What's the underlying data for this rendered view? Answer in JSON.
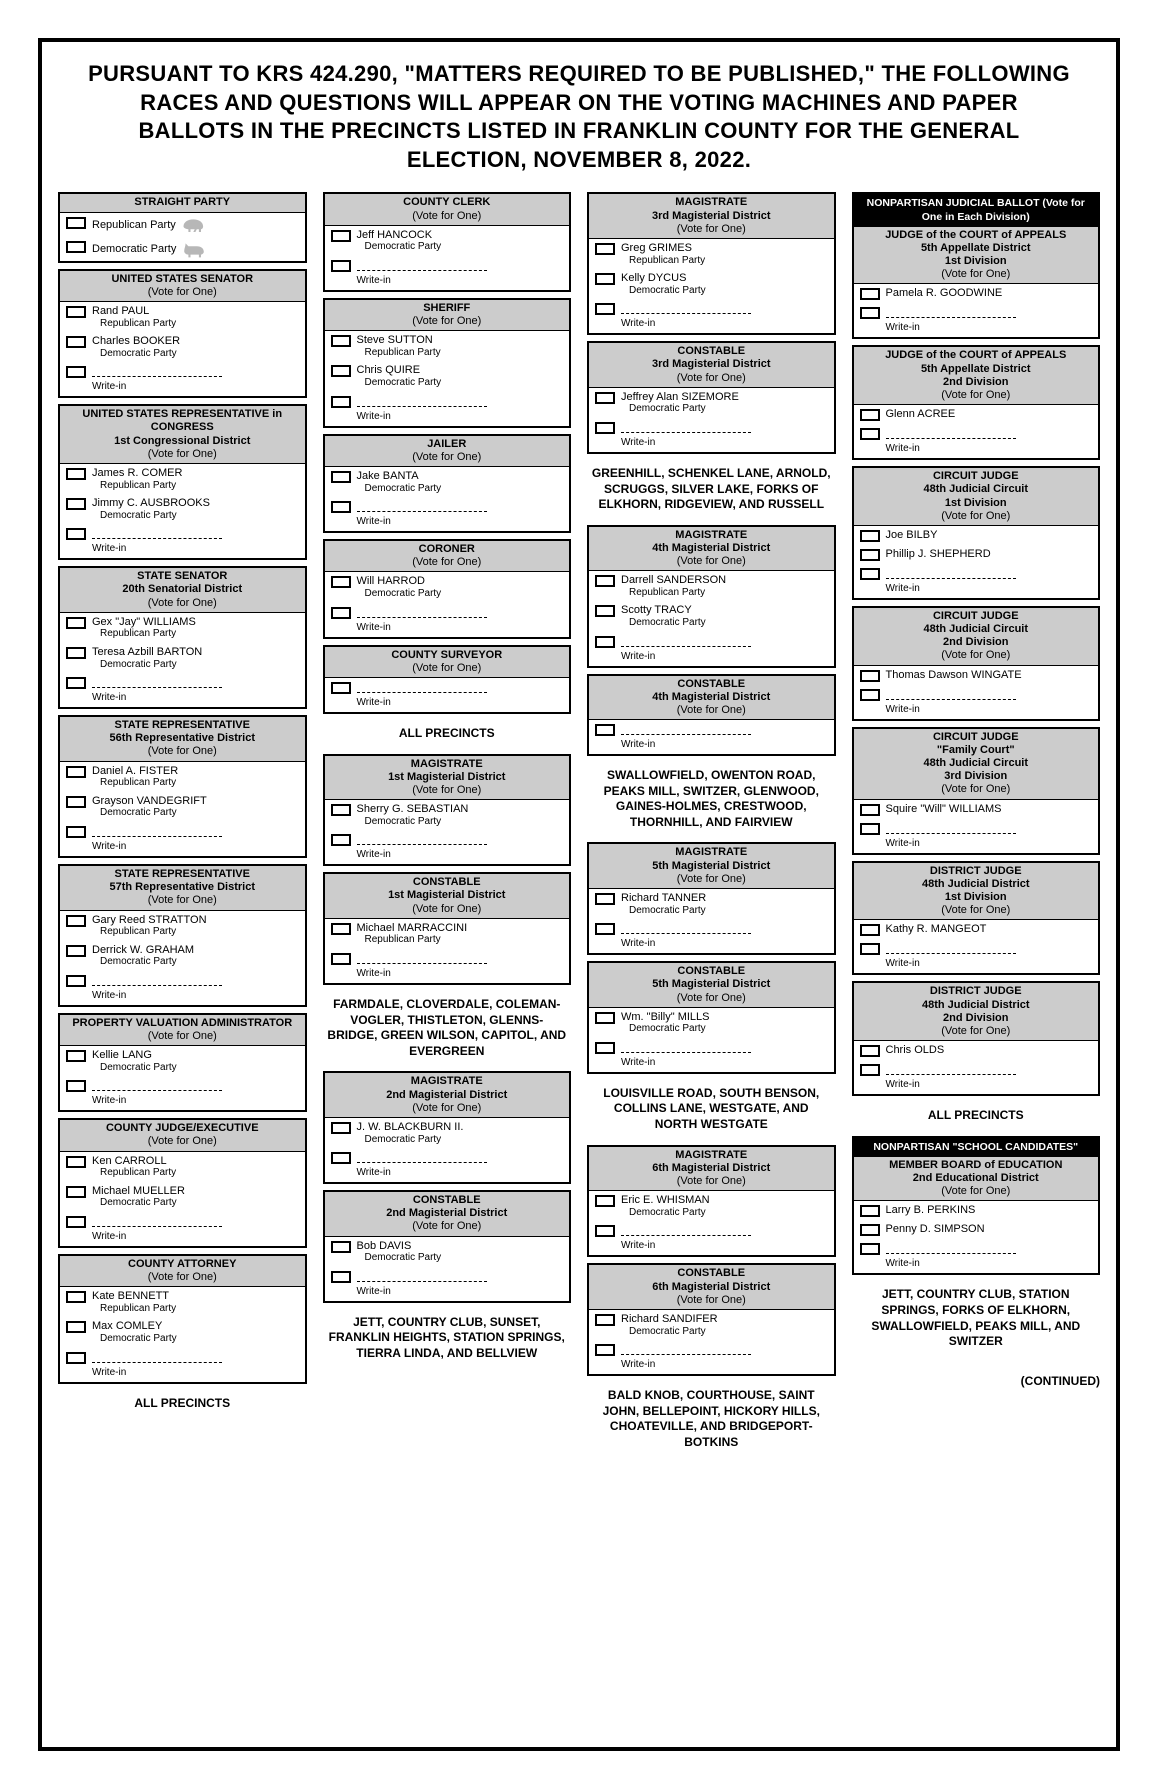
{
  "title": "PURSUANT TO KRS 424.290, \"MATTERS REQUIRED TO BE PUBLISHED,\" THE FOLLOWING RACES AND QUESTIONS WILL APPEAR ON THE VOTING MACHINES AND PAPER BALLOTS IN THE PRECINCTS LISTED IN FRANKLIN COUNTY FOR THE GENERAL ELECTION, NOVEMBER 8, 2022.",
  "vote_one": "(Vote for One)",
  "writein": "Write-in",
  "continued": "(CONTINUED)",
  "all_precincts": "ALL PRECINCTS",
  "col1": {
    "straight": {
      "h": "STRAIGHT PARTY",
      "c": [
        {
          "n": "Republican Party",
          "icon": "R"
        },
        {
          "n": "Democratic Party",
          "icon": "D"
        }
      ]
    },
    "senator": {
      "h": "UNITED STATES SENATOR",
      "c": [
        {
          "n": "Rand PAUL",
          "p": "Republican Party"
        },
        {
          "n": "Charles BOOKER",
          "p": "Democratic Party"
        }
      ],
      "wi": true
    },
    "rep": {
      "h": "UNITED STATES REPRESENTATIVE in CONGRESS",
      "sub": "1st Congressional District",
      "c": [
        {
          "n": "James R. COMER",
          "p": "Republican Party"
        },
        {
          "n": "Jimmy C. AUSBROOKS",
          "p": "Democratic Party"
        }
      ],
      "wi": true
    },
    "ssen": {
      "h": "STATE SENATOR",
      "sub": "20th Senatorial District",
      "c": [
        {
          "n": "Gex \"Jay\" WILLIAMS",
          "p": "Republican Party"
        },
        {
          "n": "Teresa Azbill BARTON",
          "p": "Democratic Party"
        }
      ],
      "wi": true
    },
    "srep56": {
      "h": "STATE REPRESENTATIVE",
      "sub": "56th Representative District",
      "c": [
        {
          "n": "Daniel A. FISTER",
          "p": "Republican Party"
        },
        {
          "n": "Grayson VANDEGRIFT",
          "p": "Democratic Party"
        }
      ],
      "wi": true
    },
    "srep57": {
      "h": "STATE REPRESENTATIVE",
      "sub": "57th Representative District",
      "c": [
        {
          "n": "Gary Reed STRATTON",
          "p": "Republican Party"
        },
        {
          "n": "Derrick W. GRAHAM",
          "p": "Democratic Party"
        }
      ],
      "wi": true
    },
    "pva": {
      "h": "PROPERTY VALUATION ADMINISTRATOR",
      "c": [
        {
          "n": "Kellie LANG",
          "p": "Democratic Party"
        }
      ],
      "wi": true
    },
    "judge": {
      "h": "COUNTY JUDGE/EXECUTIVE",
      "c": [
        {
          "n": "Ken CARROLL",
          "p": "Republican Party"
        },
        {
          "n": "Michael MUELLER",
          "p": "Democratic Party"
        }
      ],
      "wi": true
    },
    "atty": {
      "h": "COUNTY ATTORNEY",
      "c": [
        {
          "n": "Kate BENNETT",
          "p": "Republican Party"
        },
        {
          "n": "Max COMLEY",
          "p": "Democratic Party"
        }
      ],
      "wi": true
    }
  },
  "col2": {
    "clerk": {
      "h": "COUNTY CLERK",
      "c": [
        {
          "n": "Jeff HANCOCK",
          "p": "Democratic Party"
        }
      ],
      "wi": true
    },
    "sheriff": {
      "h": "SHERIFF",
      "c": [
        {
          "n": "Steve SUTTON",
          "p": "Republican Party"
        },
        {
          "n": "Chris QUIRE",
          "p": "Democratic Party"
        }
      ],
      "wi": true
    },
    "jailer": {
      "h": "JAILER",
      "c": [
        {
          "n": "Jake BANTA",
          "p": "Democratic Party"
        }
      ],
      "wi": true
    },
    "coroner": {
      "h": "CORONER",
      "c": [
        {
          "n": "Will HARROD",
          "p": "Democratic Party"
        }
      ],
      "wi": true
    },
    "surveyor": {
      "h": "COUNTY SURVEYOR",
      "c": [],
      "wi": true
    },
    "mag1": {
      "h": "MAGISTRATE",
      "sub": "1st Magisterial District",
      "c": [
        {
          "n": "Sherry G. SEBASTIAN",
          "p": "Democratic Party"
        }
      ],
      "wi": true
    },
    "con1": {
      "h": "CONSTABLE",
      "sub": "1st Magisterial District",
      "c": [
        {
          "n": "Michael MARRACCINI",
          "p": "Republican Party"
        }
      ],
      "wi": true
    },
    "sec2": "FARMDALE, CLOVERDALE, COLEMAN-VOGLER, THISTLETON, GLENNS-BRIDGE, GREEN WILSON, CAPITOL, AND EVERGREEN",
    "mag2": {
      "h": "MAGISTRATE",
      "sub": "2nd Magisterial District",
      "c": [
        {
          "n": "J. W. BLACKBURN II.",
          "p": "Democratic Party"
        }
      ],
      "wi": true
    },
    "con2": {
      "h": "CONSTABLE",
      "sub": "2nd Magisterial District",
      "c": [
        {
          "n": "Bob DAVIS",
          "p": "Democratic Party"
        }
      ],
      "wi": true
    },
    "sec3": "JETT, COUNTRY CLUB, SUNSET, FRANKLIN HEIGHTS, STATION SPRINGS, TIERRA LINDA, AND BELLVIEW"
  },
  "col3": {
    "mag3": {
      "h": "MAGISTRATE",
      "sub": "3rd Magisterial District",
      "c": [
        {
          "n": "Greg GRIMES",
          "p": "Republican Party"
        },
        {
          "n": "Kelly DYCUS",
          "p": "Democratic Party"
        }
      ],
      "wi": true
    },
    "con3": {
      "h": "CONSTABLE",
      "sub": "3rd Magisterial District",
      "c": [
        {
          "n": "Jeffrey Alan SIZEMORE",
          "p": "Democratic Party"
        }
      ],
      "wi": true
    },
    "sec4": "GREENHILL, SCHENKEL LANE, ARNOLD, SCRUGGS, SILVER LAKE, FORKS OF ELKHORN, RIDGEVIEW, AND RUSSELL",
    "mag4": {
      "h": "MAGISTRATE",
      "sub": "4th Magisterial District",
      "c": [
        {
          "n": "Darrell SANDERSON",
          "p": "Republican Party"
        },
        {
          "n": "Scotty TRACY",
          "p": "Democratic Party"
        }
      ],
      "wi": true
    },
    "con4": {
      "h": "CONSTABLE",
      "sub": "4th Magisterial District",
      "c": [],
      "wi": true
    },
    "sec5": "SWALLOWFIELD, OWENTON ROAD, PEAKS MILL, SWITZER, GLENWOOD, GAINES-HOLMES, CRESTWOOD, THORNHILL, AND FAIRVIEW",
    "mag5": {
      "h": "MAGISTRATE",
      "sub": "5th Magisterial District",
      "c": [
        {
          "n": "Richard TANNER",
          "p": "Democratic Party"
        }
      ],
      "wi": true
    },
    "con5": {
      "h": "CONSTABLE",
      "sub": "5th Magisterial District",
      "c": [
        {
          "n": "Wm. \"Billy\" MILLS",
          "p": "Democratic Party"
        }
      ],
      "wi": true
    },
    "sec6": "LOUISVILLE ROAD, SOUTH BENSON, COLLINS LANE, WESTGATE, AND NORTH WESTGATE",
    "mag6": {
      "h": "MAGISTRATE",
      "sub": "6th Magisterial District",
      "c": [
        {
          "n": "Eric E. WHISMAN",
          "p": "Democratic Party"
        }
      ],
      "wi": true
    },
    "con6": {
      "h": "CONSTABLE",
      "sub": "6th Magisterial District",
      "c": [
        {
          "n": "Richard SANDIFER",
          "p": "Democratic Party"
        }
      ],
      "wi": true
    },
    "sec7": "BALD KNOB, COURTHOUSE, SAINT JOHN, BELLEPOINT, HICKORY HILLS, CHOATEVILLE, AND BRIDGEPORT-BOTKINS"
  },
  "col4": {
    "jud_hdr": "NONPARTISAN JUDICIAL BALLOT (Vote for One in Each Division)",
    "ca1": {
      "h": "JUDGE of the COURT of APPEALS",
      "sub": "5th Appellate District\n1st Division",
      "c": [
        {
          "n": "Pamela R. GOODWINE"
        }
      ],
      "wi": true
    },
    "ca2": {
      "h": "JUDGE of the COURT of APPEALS",
      "sub": "5th Appellate District\n2nd Division",
      "c": [
        {
          "n": "Glenn ACREE"
        }
      ],
      "wi": true
    },
    "cj1": {
      "h": "CIRCUIT JUDGE",
      "sub": "48th Judicial Circuit\n1st Division",
      "c": [
        {
          "n": "Joe BILBY"
        },
        {
          "n": "Phillip J. SHEPHERD"
        }
      ],
      "wi": true
    },
    "cj2": {
      "h": "CIRCUIT JUDGE",
      "sub": "48th Judicial Circuit\n2nd Division",
      "c": [
        {
          "n": "Thomas Dawson WINGATE"
        }
      ],
      "wi": true
    },
    "cjf": {
      "h": "CIRCUIT JUDGE",
      "q": "\"Family Court\"",
      "sub": "48th Judicial Circuit\n3rd Division",
      "c": [
        {
          "n": "Squire \"Will\" WILLIAMS"
        }
      ],
      "wi": true
    },
    "dj1": {
      "h": "DISTRICT JUDGE",
      "sub": "48th Judicial District\n1st Division",
      "c": [
        {
          "n": "Kathy R. MANGEOT"
        }
      ],
      "wi": true
    },
    "dj2": {
      "h": "DISTRICT JUDGE",
      "sub": "48th Judicial District\n2nd Division",
      "c": [
        {
          "n": "Chris OLDS"
        }
      ],
      "wi": true
    },
    "sch_hdr": "NONPARTISAN \"SCHOOL CANDIDATES\"",
    "boe": {
      "h": "MEMBER BOARD of EDUCATION",
      "sub": "2nd Educational District",
      "c": [
        {
          "n": "Larry B. PERKINS"
        },
        {
          "n": "Penny D. SIMPSON"
        }
      ],
      "wi": true
    },
    "sec_boe": "JETT, COUNTRY CLUB, STATION SPRINGS, FORKS OF ELKHORN, SWALLOWFIELD, PEAKS MILL, AND SWITZER"
  }
}
